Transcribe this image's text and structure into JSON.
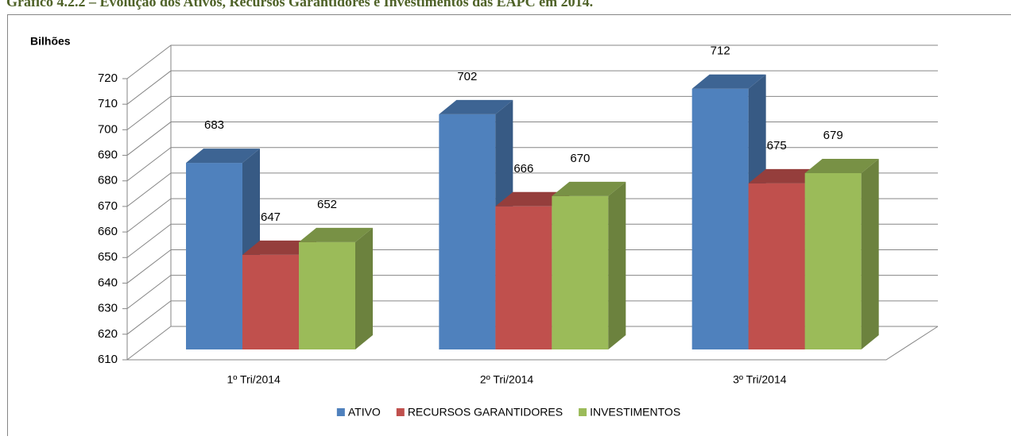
{
  "chart_data": {
    "type": "bar3d",
    "title": "Gráfico 4.2.2 – Evolução dos Ativos, Recursos Garantidores e Investimentos das EAPC em 2014.",
    "y_label": "Bilhões",
    "categories": [
      "1º Tri/2014",
      "2º Tri/2014",
      "3º Tri/2014"
    ],
    "series": [
      {
        "name": "ATIVO",
        "color": "#4f81bd",
        "values": [
          683,
          702,
          712
        ]
      },
      {
        "name": "RECURSOS GARANTIDORES",
        "color": "#c0504d",
        "values": [
          647,
          666,
          675
        ]
      },
      {
        "name": "INVESTIMENTOS",
        "color": "#9bbb59",
        "values": [
          652,
          670,
          679
        ]
      }
    ],
    "ylim": [
      610,
      720
    ],
    "yticks": [
      610,
      620,
      630,
      640,
      650,
      660,
      670,
      680,
      690,
      700,
      710,
      720
    ],
    "grid": true,
    "legend": "bottom"
  }
}
